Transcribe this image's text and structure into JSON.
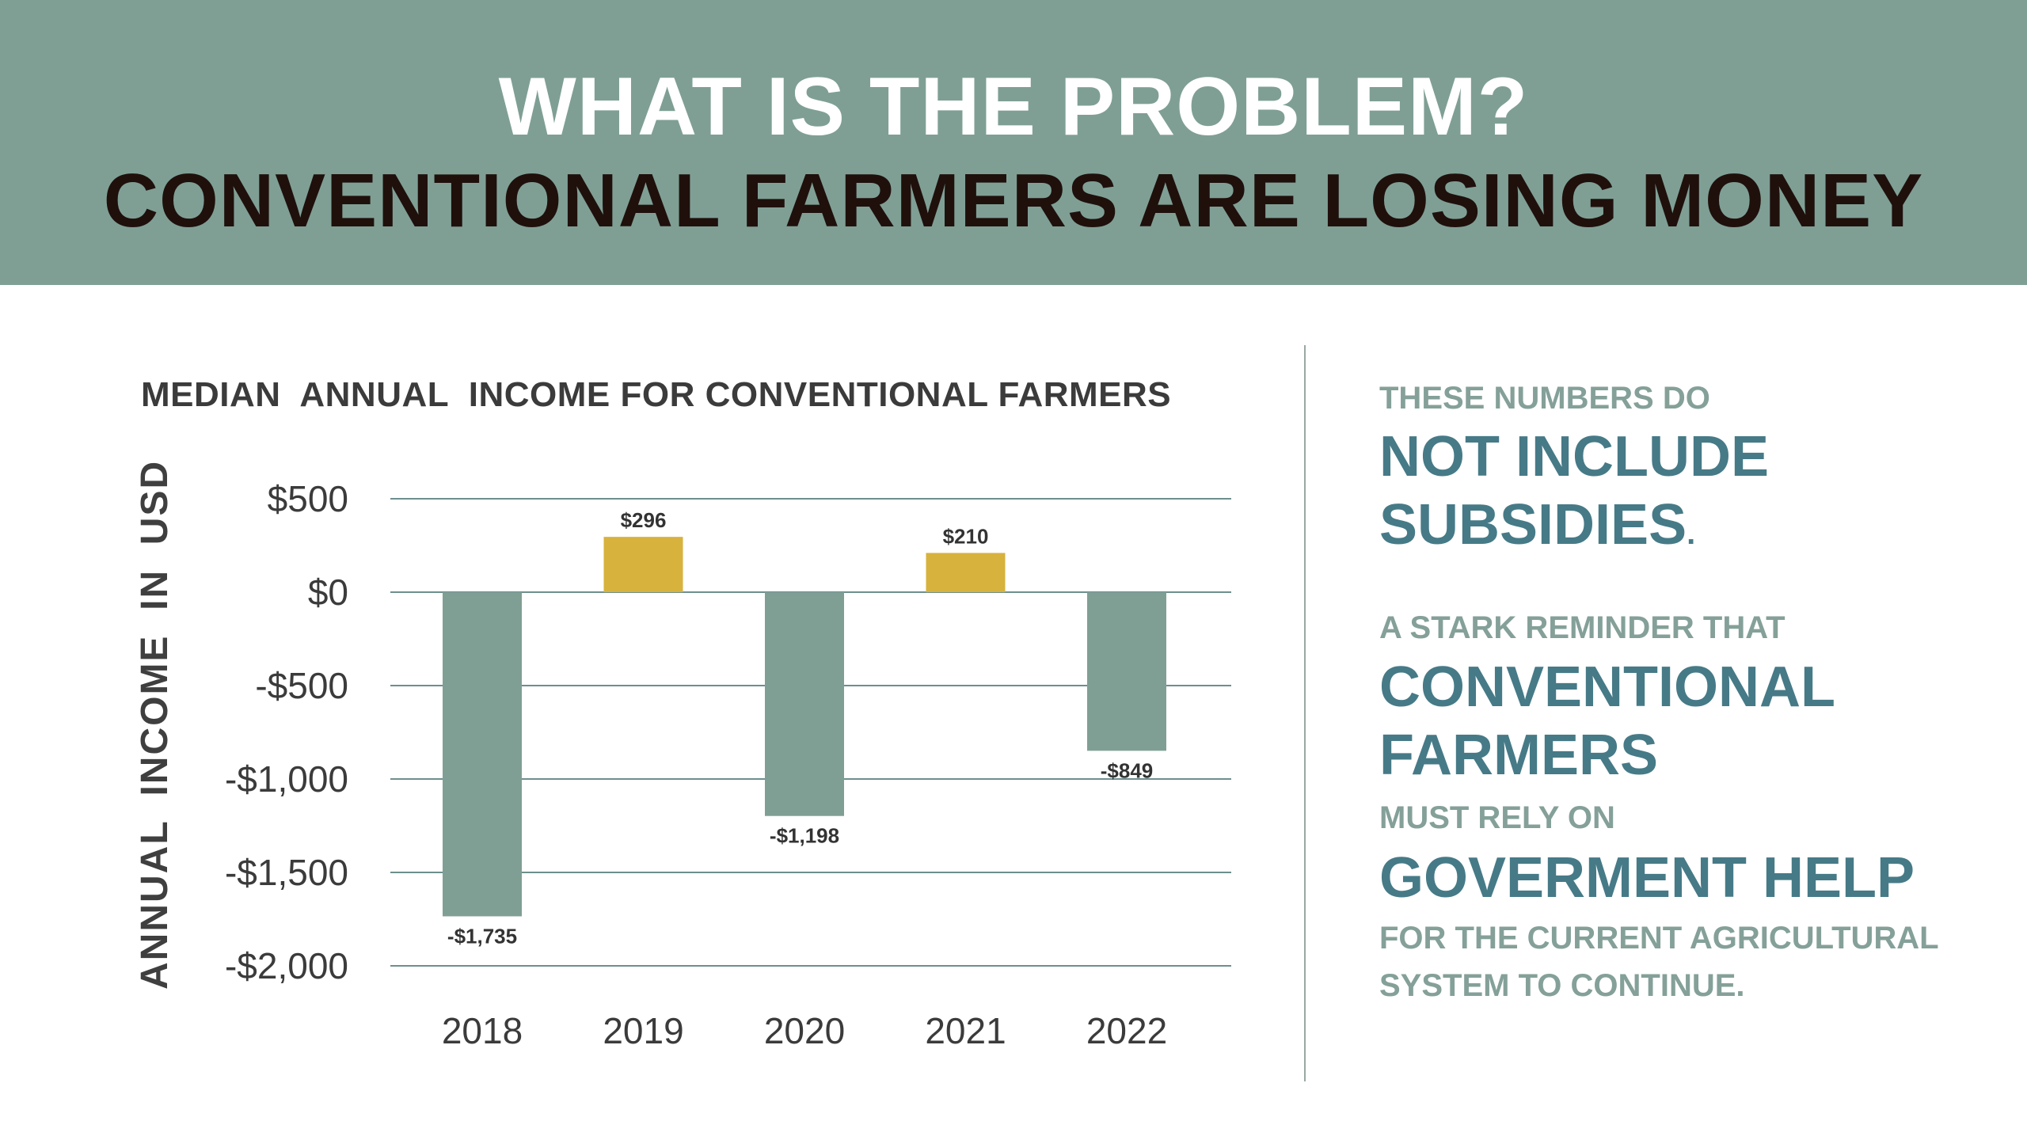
{
  "header": {
    "line1": "WHAT IS THE PROBLEM?",
    "line2": "CONVENTIONAL FARMERS ARE LOSING MONEY"
  },
  "colors": {
    "banner": "#7f9f95",
    "negative_bar": "#7f9f95",
    "positive_bar": "#d7b23d",
    "gridline": "#6d8f8e",
    "accent_text": "#467a87",
    "muted_text": "#84a099"
  },
  "chart_data": {
    "type": "bar",
    "title": "MEDIAN  ANNUAL  INCOME FOR CONVENTIONAL FARMERS",
    "xlabel": "",
    "ylabel": "ANNUAL  INCOME  IN  USD",
    "categories": [
      "2018",
      "2019",
      "2020",
      "2021",
      "2022"
    ],
    "values": [
      -1735,
      296,
      -1198,
      210,
      -849
    ],
    "data_labels": [
      "-$1,735",
      "$296",
      "-$1,198",
      "$210",
      "-$849"
    ],
    "yticks": [
      500,
      0,
      -500,
      -1000,
      -1500,
      -2000
    ],
    "ytick_labels": [
      "$500",
      "$0",
      "-$500",
      "-$1,000",
      "-$1,500",
      "-$2,000"
    ],
    "ylim": [
      -2000,
      500
    ],
    "grid": true,
    "legend": "none"
  },
  "side": {
    "line1": "THESE NUMBERS DO",
    "line2": "NOT INCLUDE",
    "line3": "SUBSIDIES",
    "line3_period": ".",
    "line4": "A STARK REMINDER THAT",
    "line5": "CONVENTIONAL",
    "line6": "FARMERS",
    "line7": "MUST RELY ON",
    "line8": "GOVERMENT HELP",
    "line9": "FOR THE CURRENT AGRICULTURAL",
    "line10": "SYSTEM TO CONTINUE."
  }
}
